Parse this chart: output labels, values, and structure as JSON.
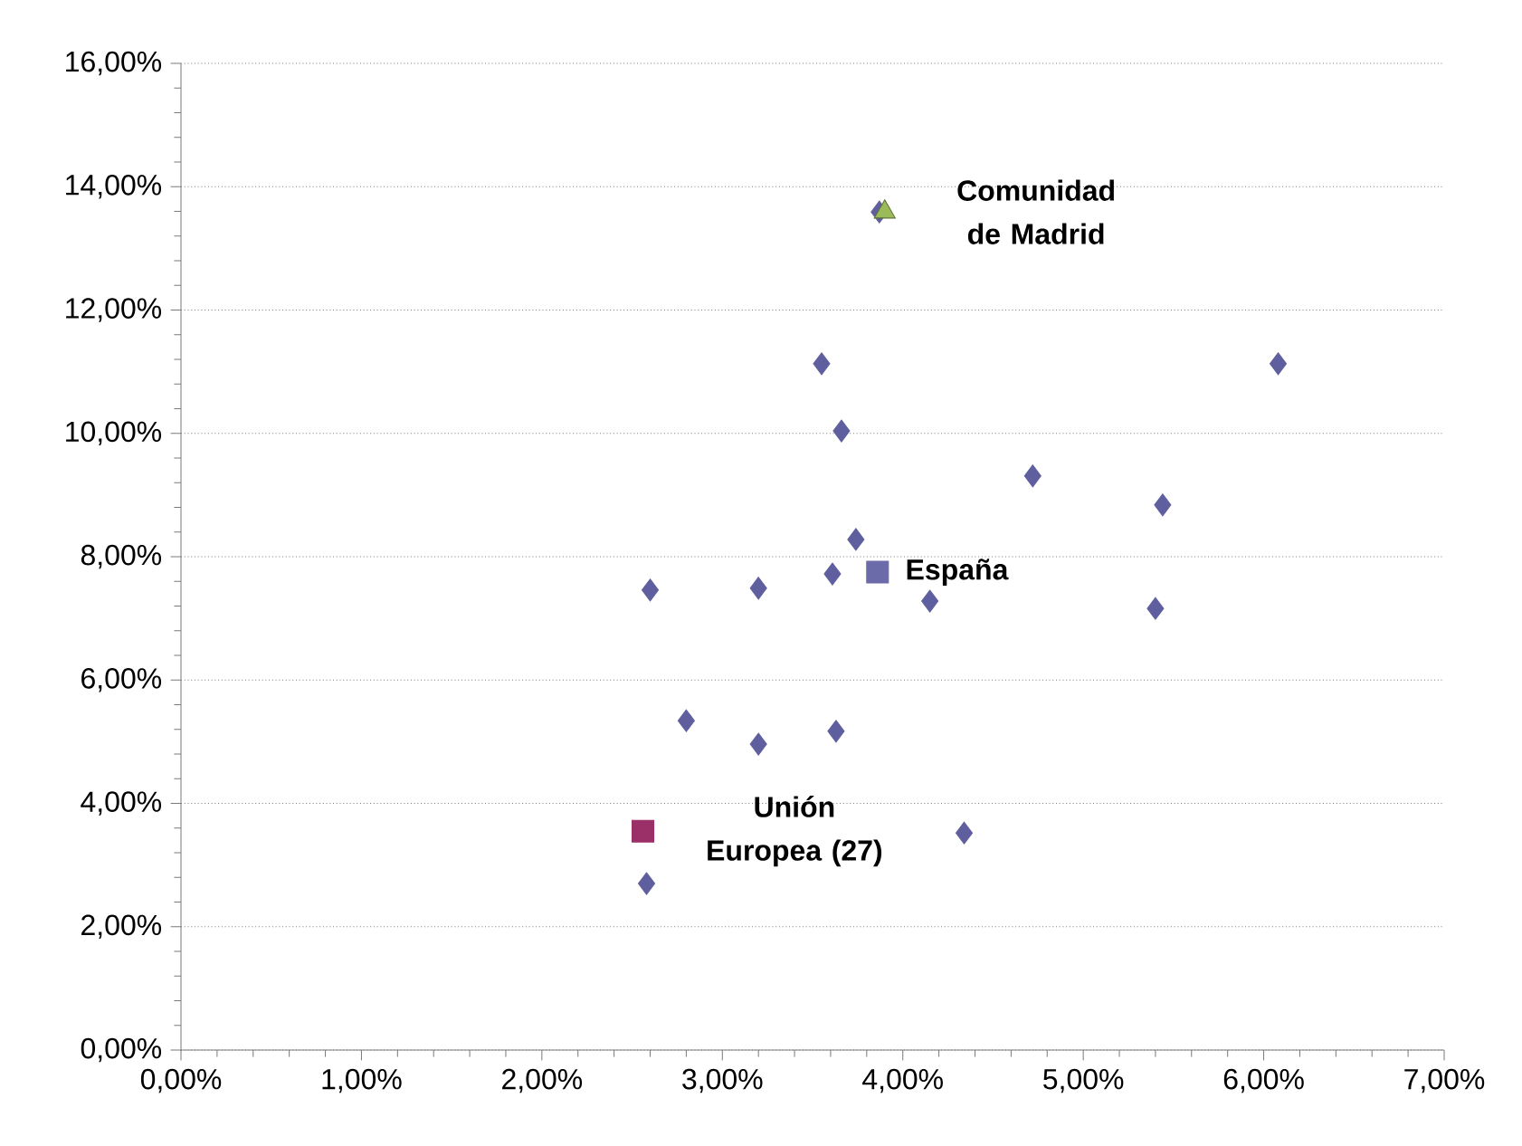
{
  "chart_data": {
    "type": "scatter",
    "xlim": [
      0,
      7
    ],
    "ylim": [
      0,
      16
    ],
    "xticks": [
      {
        "value": 0,
        "label": "0,00%"
      },
      {
        "value": 1,
        "label": "1,00%"
      },
      {
        "value": 2,
        "label": "2,00%"
      },
      {
        "value": 3,
        "label": "3,00%"
      },
      {
        "value": 4,
        "label": "4,00%"
      },
      {
        "value": 5,
        "label": "5,00%"
      },
      {
        "value": 6,
        "label": "6,00%"
      },
      {
        "value": 7,
        "label": "7,00%"
      }
    ],
    "yticks": [
      {
        "value": 0,
        "label": "0,00%"
      },
      {
        "value": 2,
        "label": "2,00%"
      },
      {
        "value": 4,
        "label": "4,00%"
      },
      {
        "value": 6,
        "label": "6,00%"
      },
      {
        "value": 8,
        "label": "8,00%"
      },
      {
        "value": 10,
        "label": "10,00%"
      },
      {
        "value": 12,
        "label": "12,00%"
      },
      {
        "value": 14,
        "label": "14,00%"
      },
      {
        "value": 16,
        "label": "16,00%"
      }
    ],
    "grid": "y",
    "series": [
      {
        "color": "#5f5f9f",
        "marker": "diamond",
        "x": [
          2.58,
          2.6,
          2.8,
          3.2,
          3.2,
          3.55,
          3.61,
          3.63,
          3.66,
          3.74,
          3.87,
          4.15,
          4.34,
          4.72,
          5.4,
          5.44,
          6.08
        ],
        "values": [
          2.7,
          7.46,
          5.34,
          7.49,
          4.96,
          11.13,
          7.72,
          5.17,
          10.04,
          8.28,
          13.59,
          7.28,
          3.52,
          9.31,
          7.16,
          8.84,
          11.13
        ]
      },
      {
        "name": "España",
        "color": "#6b6ba9",
        "marker": "square",
        "x": [
          3.86
        ],
        "values": [
          7.75
        ]
      },
      {
        "name": "Unión Europea (27)",
        "color": "#9b3068",
        "marker": "square",
        "x": [
          2.56
        ],
        "values": [
          3.55
        ]
      },
      {
        "name": "Comunidad de Madrid",
        "color": "#9bbb59",
        "marker": "triangle",
        "x": [
          3.9
        ],
        "values": [
          13.59
        ]
      }
    ]
  }
}
